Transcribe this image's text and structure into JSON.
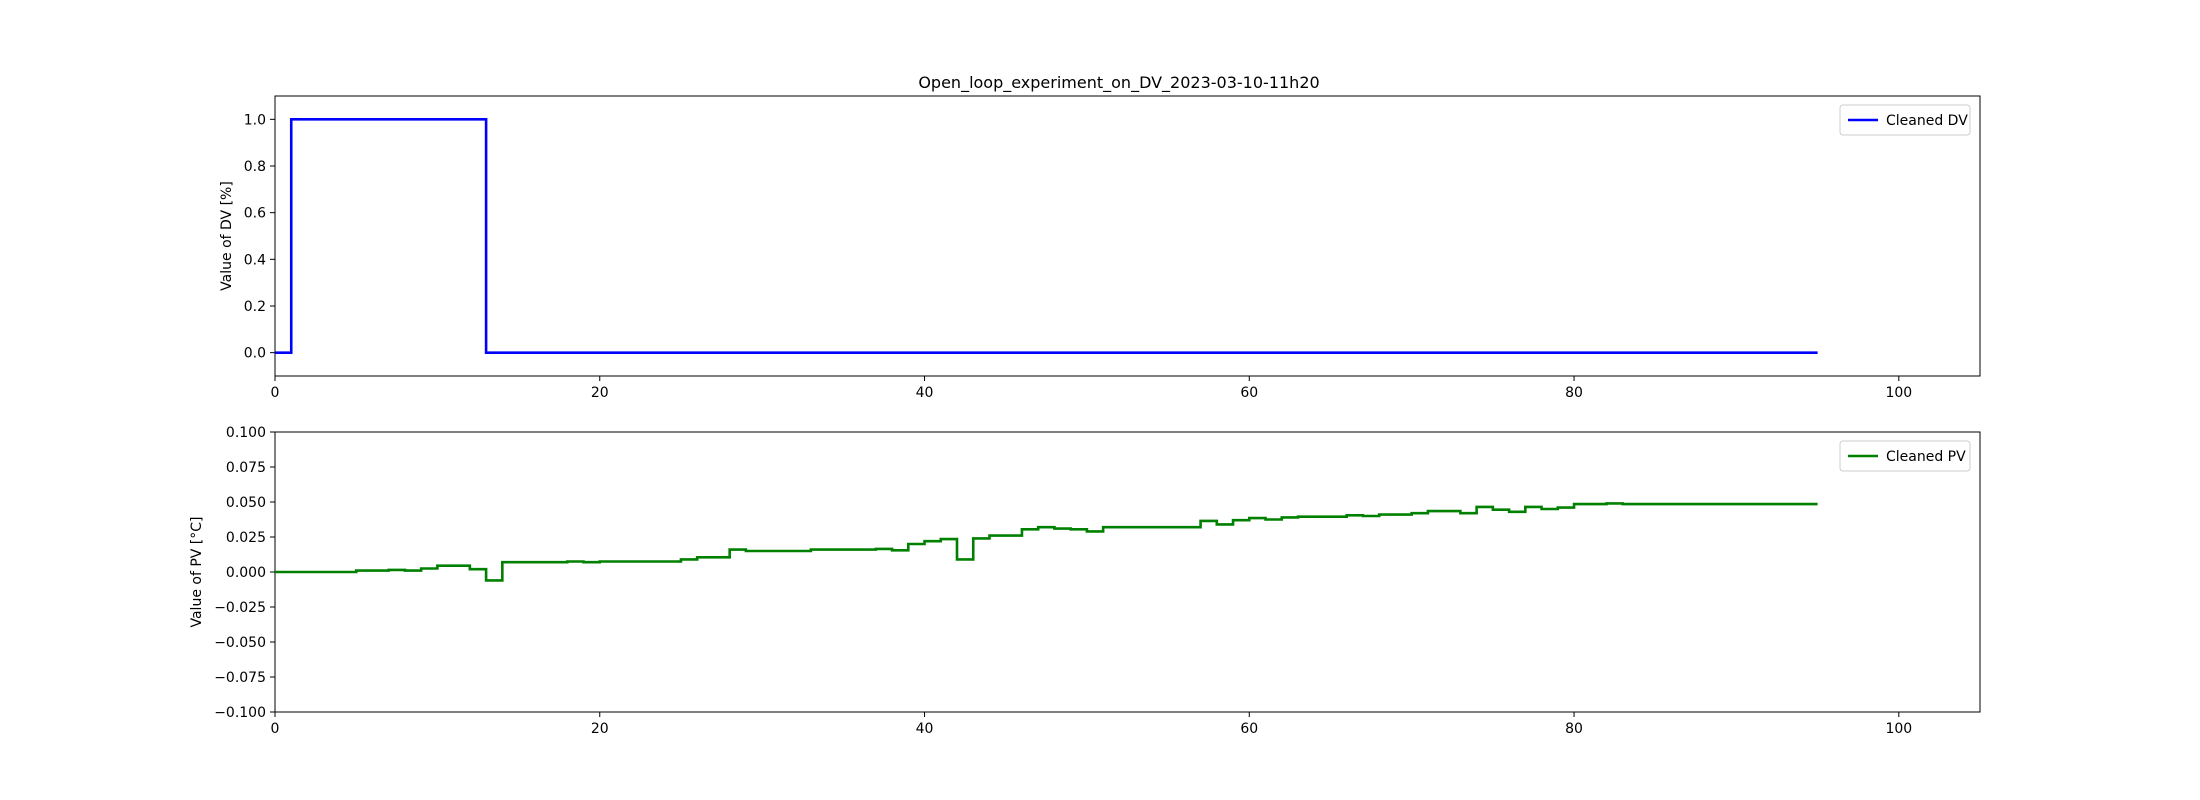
{
  "title": "Open_loop_experiment_on_DV_2023-03-10-11h20",
  "chart_data": [
    {
      "type": "line",
      "step": "post",
      "title": "Open_loop_experiment_on_DV_2023-03-10-11h20",
      "xlabel": "",
      "ylabel": "Value of DV [%]",
      "xlim": [
        0,
        105
      ],
      "ylim": [
        -0.1,
        1.1
      ],
      "xticks": [
        0,
        20,
        40,
        60,
        80,
        100
      ],
      "yticks": [
        0.0,
        0.2,
        0.4,
        0.6,
        0.8,
        1.0
      ],
      "ytick_labels": [
        "0.0",
        "0.2",
        "0.4",
        "0.6",
        "0.8",
        "1.0"
      ],
      "legend": "upper right",
      "grid": false,
      "series": [
        {
          "name": "Cleaned DV",
          "color": "#0000ff",
          "x": [
            0,
            1,
            13,
            95
          ],
          "y": [
            0,
            1,
            0,
            0
          ]
        }
      ]
    },
    {
      "type": "line",
      "step": "post",
      "title": "",
      "xlabel": "",
      "ylabel": "Value of PV [°C]",
      "xlim": [
        0,
        105
      ],
      "ylim": [
        -0.1,
        0.1
      ],
      "xticks": [
        0,
        20,
        40,
        60,
        80,
        100
      ],
      "yticks": [
        -0.1,
        -0.075,
        -0.05,
        -0.025,
        0.0,
        0.025,
        0.05,
        0.075,
        0.1
      ],
      "ytick_labels": [
        "−0.100",
        "−0.075",
        "−0.050",
        "−0.025",
        "0.000",
        "0.025",
        "0.050",
        "0.075",
        "0.100"
      ],
      "legend": "upper right",
      "grid": false,
      "series": [
        {
          "name": "Cleaned PV",
          "color": "#008000",
          "x": [
            0,
            5,
            7,
            8,
            9,
            10,
            12,
            13,
            14,
            18,
            19,
            20,
            25,
            26,
            28,
            29,
            33,
            37,
            38,
            39,
            40,
            41,
            42,
            43,
            44,
            46,
            47,
            48,
            49,
            50,
            51,
            57,
            58,
            59,
            60,
            61,
            62,
            63,
            66,
            67,
            68,
            70,
            71,
            73,
            74,
            75,
            76,
            77,
            78,
            79,
            80,
            82,
            83,
            95
          ],
          "y": [
            0.0,
            0.001,
            0.0015,
            0.001,
            0.0025,
            0.0045,
            0.002,
            -0.006,
            0.007,
            0.0075,
            0.007,
            0.0075,
            0.009,
            0.0105,
            0.016,
            0.015,
            0.016,
            0.0165,
            0.0155,
            0.02,
            0.022,
            0.0235,
            0.009,
            0.024,
            0.026,
            0.0305,
            0.032,
            0.031,
            0.0305,
            0.029,
            0.032,
            0.0365,
            0.034,
            0.037,
            0.0385,
            0.0375,
            0.039,
            0.0395,
            0.0405,
            0.04,
            0.041,
            0.042,
            0.0435,
            0.042,
            0.0465,
            0.0445,
            0.043,
            0.0465,
            0.045,
            0.046,
            0.0485,
            0.049,
            0.0485,
            0.0485
          ]
        }
      ]
    }
  ]
}
